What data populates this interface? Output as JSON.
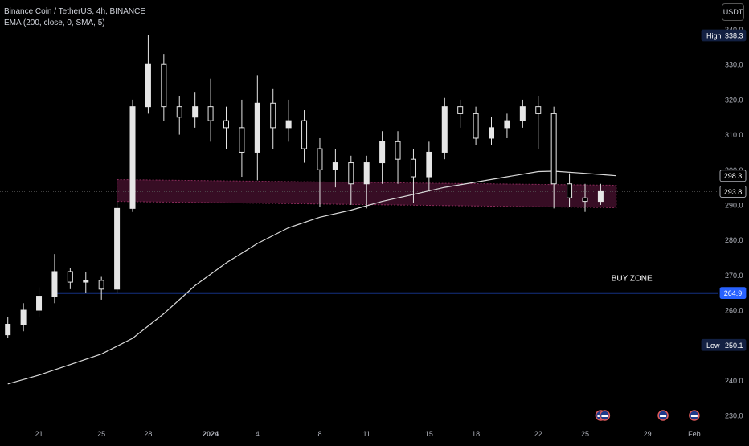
{
  "header": {
    "title": "Binance Coin / TetherUS, 4h, BINANCE",
    "indicator": "EMA (200, close, 0, SMA, 5)",
    "currency": "USDT"
  },
  "annotation": {
    "buy_zone_label": "BUY ZONE"
  },
  "colors": {
    "background": "#000000",
    "candle": "#e6e6e6",
    "ema": "#d9d9d9",
    "zone_fill": "#4a1230",
    "zone_border": "#8a2a5a",
    "buy_line": "#2962ff"
  },
  "chart_data": {
    "type": "candlestick",
    "y_axis": {
      "ticks": [
        230,
        240,
        250,
        260,
        270,
        280,
        290,
        300,
        310,
        320,
        330,
        340
      ],
      "tick_labels": [
        "230.0",
        "240.0",
        "250.0",
        "260.0",
        "270.0",
        "280.0",
        "290.0",
        "300.0",
        "310.0",
        "320.0",
        "330.0",
        "340.0"
      ],
      "range": [
        227.5,
        341.5
      ]
    },
    "x_axis": {
      "labels": [
        "21",
        "25",
        "28",
        "2024",
        "4",
        "8",
        "11",
        "15",
        "18",
        "22",
        "25",
        "29",
        "Feb"
      ],
      "label_dates": [
        "2023-12-21",
        "2023-12-25",
        "2023-12-28",
        "2024-01-01",
        "2024-01-04",
        "2024-01-08",
        "2024-01-11",
        "2024-01-15",
        "2024-01-18",
        "2024-01-22",
        "2024-01-25",
        "2024-01-29",
        "2024-02-01"
      ]
    },
    "price_badges": [
      {
        "prefix": "High",
        "value": "338.3",
        "y": 338.3
      },
      {
        "prefix": "",
        "value": "298.3",
        "y": 298.3
      },
      {
        "prefix": "",
        "value": "293.8",
        "y": 293.8
      },
      {
        "prefix": "",
        "value": "264.9",
        "y": 264.9
      },
      {
        "prefix": "Low",
        "value": "250.1",
        "y": 250.1
      }
    ],
    "resistance_zone": {
      "start": "2023-12-26",
      "end": "2024-01-27",
      "top_start": 297.2,
      "bottom_start": 291.0,
      "top_end": 295.6,
      "bottom_end": 289.2
    },
    "buy_zone_level": 264.9,
    "buy_zone_start": "2023-12-22",
    "current_price": 293.8,
    "ema_200": [
      [
        "2023-12-19",
        239.0
      ],
      [
        "2023-12-21",
        241.5
      ],
      [
        "2023-12-23",
        244.5
      ],
      [
        "2023-12-25",
        247.5
      ],
      [
        "2023-12-27",
        252.0
      ],
      [
        "2023-12-29",
        259.0
      ],
      [
        "2023-12-31",
        267.0
      ],
      [
        "2024-01-02",
        273.5
      ],
      [
        "2024-01-04",
        279.0
      ],
      [
        "2024-01-06",
        283.5
      ],
      [
        "2024-01-08",
        286.5
      ],
      [
        "2024-01-10",
        288.5
      ],
      [
        "2024-01-12",
        291.0
      ],
      [
        "2024-01-14",
        293.0
      ],
      [
        "2024-01-16",
        295.0
      ],
      [
        "2024-01-18",
        296.5
      ],
      [
        "2024-01-20",
        298.0
      ],
      [
        "2024-01-22",
        299.5
      ],
      [
        "2024-01-23",
        299.6
      ],
      [
        "2024-01-25",
        299.0
      ],
      [
        "2024-01-27",
        298.3
      ]
    ],
    "candles": [
      [
        "2023-12-19",
        253.0,
        256.0,
        252.0,
        258.0
      ],
      [
        "2023-12-20",
        256.0,
        260.0,
        254.0,
        262.0
      ],
      [
        "2023-12-21",
        260.0,
        264.0,
        258.0,
        266.5
      ],
      [
        "2023-12-22",
        264.0,
        271.0,
        262.0,
        276.0
      ],
      [
        "2023-12-23",
        271.0,
        268.0,
        266.0,
        272.0
      ],
      [
        "2023-12-24",
        268.0,
        268.5,
        265.0,
        271.0
      ],
      [
        "2023-12-25",
        268.5,
        266.0,
        263.0,
        269.5
      ],
      [
        "2023-12-26",
        266.0,
        289.0,
        265.0,
        291.0
      ],
      [
        "2023-12-27",
        289.0,
        318.0,
        288.0,
        320.0
      ],
      [
        "2023-12-28",
        318.0,
        330.0,
        316.0,
        338.3
      ],
      [
        "2023-12-29",
        330.0,
        318.0,
        314.0,
        333.0
      ],
      [
        "2023-12-30",
        318.0,
        315.0,
        310.0,
        321.0
      ],
      [
        "2023-12-31",
        315.0,
        318.0,
        312.0,
        322.0
      ],
      [
        "2024-01-01",
        318.0,
        314.0,
        308.0,
        326.0
      ],
      [
        "2024-01-02",
        314.0,
        312.0,
        306.0,
        318.0
      ],
      [
        "2024-01-03",
        312.0,
        305.0,
        298.0,
        320.0
      ],
      [
        "2024-01-04",
        305.0,
        319.0,
        297.0,
        327.0
      ],
      [
        "2024-01-05",
        319.0,
        312.0,
        306.0,
        323.0
      ],
      [
        "2024-01-06",
        312.0,
        314.0,
        308.0,
        320.0
      ],
      [
        "2024-01-07",
        314.0,
        306.0,
        302.0,
        317.0
      ],
      [
        "2024-01-08",
        306.0,
        300.0,
        289.5,
        309.0
      ],
      [
        "2024-01-09",
        300.0,
        302.0,
        295.0,
        306.0
      ],
      [
        "2024-01-10",
        302.0,
        296.0,
        290.0,
        304.0
      ],
      [
        "2024-01-11",
        296.0,
        302.0,
        289.0,
        304.0
      ],
      [
        "2024-01-12",
        302.0,
        308.0,
        296.0,
        311.0
      ],
      [
        "2024-01-13",
        308.0,
        303.0,
        296.0,
        311.0
      ],
      [
        "2024-01-14",
        303.0,
        298.0,
        290.5,
        306.0
      ],
      [
        "2024-01-15",
        298.0,
        305.0,
        294.0,
        308.0
      ],
      [
        "2024-01-16",
        305.0,
        318.0,
        303.0,
        320.5
      ],
      [
        "2024-01-17",
        318.0,
        316.0,
        312.0,
        320.0
      ],
      [
        "2024-01-18",
        316.0,
        309.0,
        307.0,
        318.0
      ],
      [
        "2024-01-19",
        309.0,
        312.0,
        307.0,
        315.0
      ],
      [
        "2024-01-20",
        312.0,
        314.0,
        309.0,
        316.0
      ],
      [
        "2024-01-21",
        314.0,
        318.0,
        312.0,
        320.0
      ],
      [
        "2024-01-22",
        318.0,
        316.0,
        306.0,
        321.0
      ],
      [
        "2024-01-23",
        316.0,
        296.0,
        289.0,
        318.0
      ],
      [
        "2024-01-24",
        296.0,
        292.0,
        289.5,
        299.0
      ],
      [
        "2024-01-25",
        292.0,
        291.0,
        288.0,
        296.0
      ],
      [
        "2024-01-26",
        291.0,
        293.8,
        290.0,
        296.0
      ]
    ]
  }
}
